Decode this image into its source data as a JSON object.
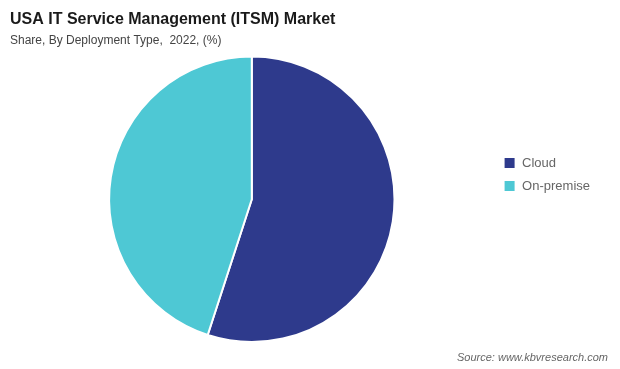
{
  "chart_data": {
    "type": "pie",
    "title": "USA IT Service Management (ITSM) Market",
    "subtitle": "Share, By Deployment Type,  2022, (%)",
    "categories": [
      "Cloud",
      "On-premise"
    ],
    "values": [
      55,
      45
    ],
    "colors": [
      "#2e3a8c",
      "#4ec8d4"
    ],
    "legend": "right",
    "annotations": [
      "Source: www.kbvresearch.com"
    ]
  }
}
